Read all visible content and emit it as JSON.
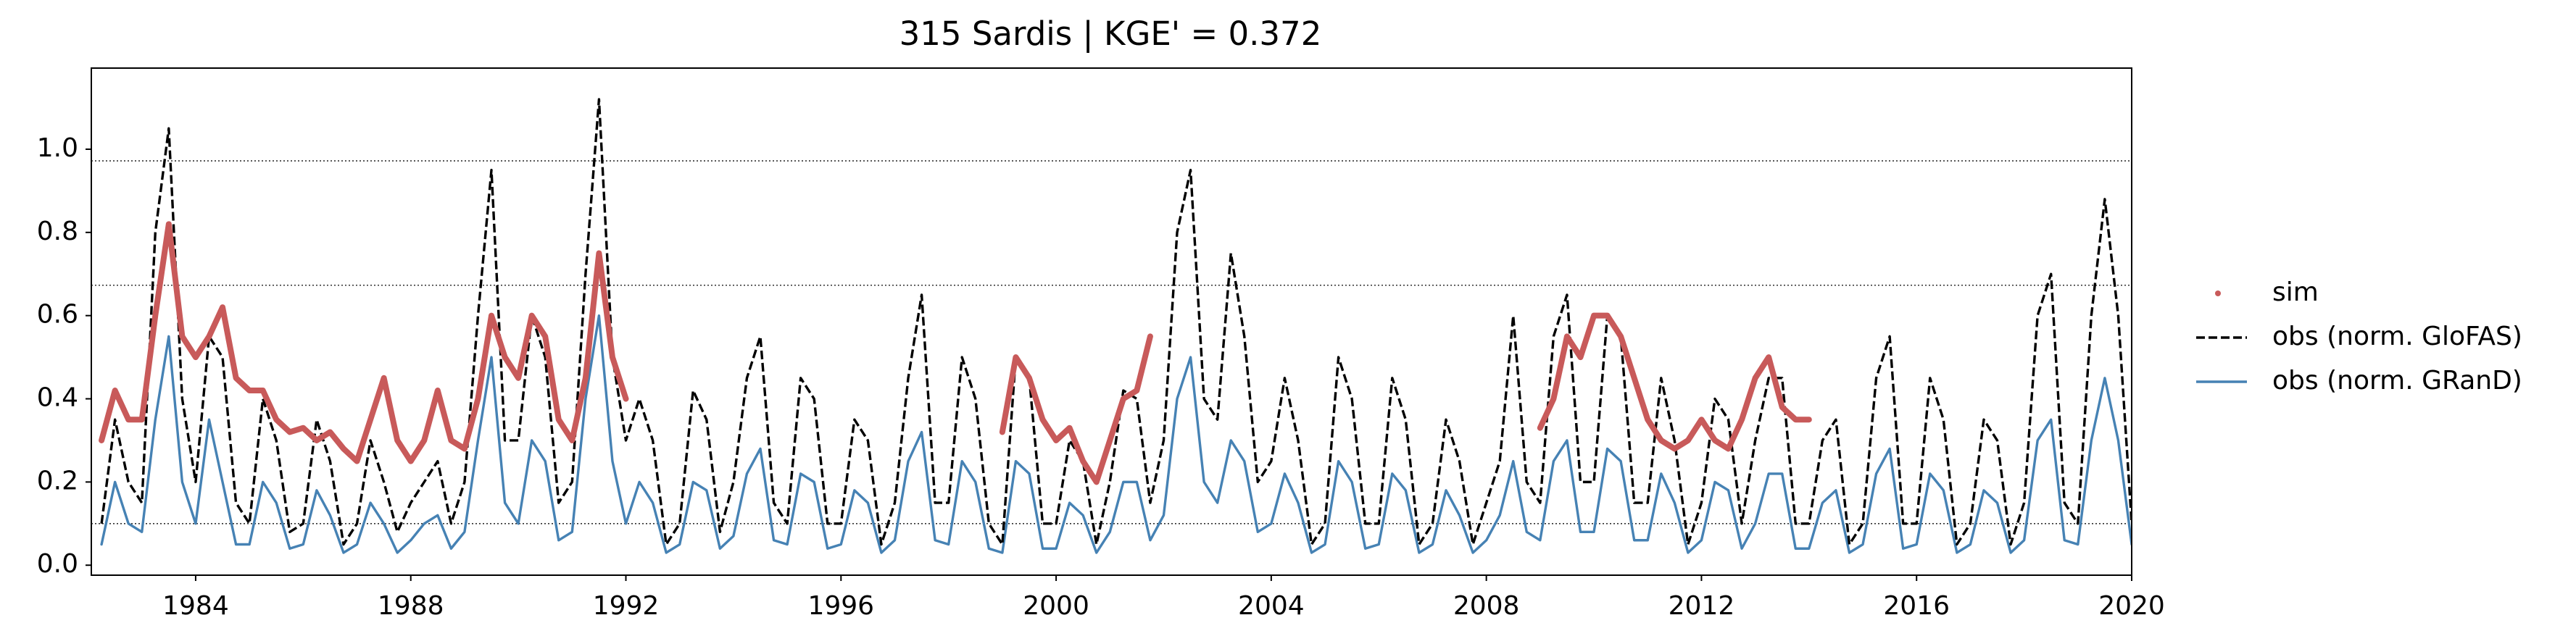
{
  "chart_data": {
    "type": "line",
    "title": "315  Sardis | KGE' = 0.372",
    "x": [
      1982.25,
      1982.5,
      1982.75,
      1983.0,
      1983.25,
      1983.5,
      1983.75,
      1984.0,
      1984.25,
      1984.5,
      1984.75,
      1985.0,
      1985.25,
      1985.5,
      1985.75,
      1986.0,
      1986.25,
      1986.5,
      1986.75,
      1987.0,
      1987.25,
      1987.5,
      1987.75,
      1988.0,
      1988.25,
      1988.5,
      1988.75,
      1989.0,
      1989.25,
      1989.5,
      1989.75,
      1990.0,
      1990.25,
      1990.5,
      1990.75,
      1991.0,
      1991.25,
      1991.5,
      1991.75,
      1992.0,
      1992.25,
      1992.5,
      1992.75,
      1993.0,
      1993.25,
      1993.5,
      1993.75,
      1994.0,
      1994.25,
      1994.5,
      1994.75,
      1995.0,
      1995.25,
      1995.5,
      1995.75,
      1996.0,
      1996.25,
      1996.5,
      1996.75,
      1997.0,
      1997.25,
      1997.5,
      1997.75,
      1998.0,
      1998.25,
      1998.5,
      1998.75,
      1999.0,
      1999.25,
      1999.5,
      1999.75,
      2000.0,
      2000.25,
      2000.5,
      2000.75,
      2001.0,
      2001.25,
      2001.5,
      2001.75,
      2002.0,
      2002.25,
      2002.5,
      2002.75,
      2003.0,
      2003.25,
      2003.5,
      2003.75,
      2004.0,
      2004.25,
      2004.5,
      2004.75,
      2005.0,
      2005.25,
      2005.5,
      2005.75,
      2006.0,
      2006.25,
      2006.5,
      2006.75,
      2007.0,
      2007.25,
      2007.5,
      2007.75,
      2008.0,
      2008.25,
      2008.5,
      2008.75,
      2009.0,
      2009.25,
      2009.5,
      2009.75,
      2010.0,
      2010.25,
      2010.5,
      2010.75,
      2011.0,
      2011.25,
      2011.5,
      2011.75,
      2012.0,
      2012.25,
      2012.5,
      2012.75,
      2013.0,
      2013.25,
      2013.5,
      2013.75,
      2014.0,
      2014.25,
      2014.5,
      2014.75,
      2015.0,
      2015.25,
      2015.5,
      2015.75,
      2016.0,
      2016.25,
      2016.5,
      2016.75,
      2017.0,
      2017.25,
      2017.5,
      2017.75,
      2018.0,
      2018.25,
      2018.5,
      2018.75,
      2019.0,
      2019.25,
      2019.5,
      2019.75,
      2020.0
    ],
    "series": [
      {
        "name": "sim",
        "color": "#c85a5a",
        "marker": "dot",
        "values": [
          0.3,
          0.42,
          0.35,
          0.35,
          0.6,
          0.82,
          0.55,
          0.5,
          0.55,
          0.62,
          0.45,
          0.42,
          0.42,
          0.35,
          0.32,
          0.33,
          0.3,
          0.32,
          0.28,
          0.25,
          0.35,
          0.45,
          0.3,
          0.25,
          0.3,
          0.42,
          0.3,
          0.28,
          0.4,
          0.6,
          0.5,
          0.45,
          0.6,
          0.55,
          0.35,
          0.3,
          0.45,
          0.75,
          0.5,
          0.4,
          null,
          null,
          null,
          null,
          null,
          null,
          null,
          null,
          null,
          null,
          null,
          null,
          null,
          null,
          null,
          null,
          null,
          null,
          null,
          null,
          null,
          null,
          null,
          null,
          null,
          null,
          null,
          0.32,
          0.5,
          0.45,
          0.35,
          0.3,
          0.33,
          0.25,
          0.2,
          0.3,
          0.4,
          0.42,
          0.55,
          null,
          null,
          null,
          null,
          null,
          null,
          null,
          null,
          null,
          null,
          null,
          null,
          null,
          null,
          null,
          null,
          null,
          null,
          null,
          null,
          null,
          null,
          null,
          null,
          null,
          null,
          null,
          null,
          0.33,
          0.4,
          0.55,
          0.5,
          0.6,
          0.6,
          0.55,
          0.45,
          0.35,
          0.3,
          0.28,
          0.3,
          0.35,
          0.3,
          0.28,
          0.35,
          0.45,
          0.5,
          0.38,
          0.35,
          0.35,
          null,
          null,
          null,
          null,
          null,
          null,
          null,
          null,
          null,
          null,
          null,
          null,
          null,
          null,
          null,
          null,
          null,
          null,
          null,
          null,
          null,
          null,
          null,
          null
        ]
      },
      {
        "name": "obs (norm. GloFAS)",
        "color": "#000000",
        "linestyle": "dashed",
        "values": [
          0.1,
          0.35,
          0.2,
          0.15,
          0.8,
          1.05,
          0.4,
          0.2,
          0.55,
          0.5,
          0.15,
          0.1,
          0.4,
          0.3,
          0.08,
          0.1,
          0.35,
          0.25,
          0.05,
          0.1,
          0.3,
          0.2,
          0.08,
          0.15,
          0.2,
          0.25,
          0.1,
          0.2,
          0.6,
          0.95,
          0.3,
          0.3,
          0.6,
          0.5,
          0.15,
          0.2,
          0.7,
          1.12,
          0.5,
          0.3,
          0.4,
          0.3,
          0.05,
          0.1,
          0.42,
          0.35,
          0.08,
          0.2,
          0.45,
          0.55,
          0.15,
          0.1,
          0.45,
          0.4,
          0.1,
          0.1,
          0.35,
          0.3,
          0.05,
          0.15,
          0.45,
          0.65,
          0.15,
          0.15,
          0.5,
          0.4,
          0.1,
          0.05,
          0.5,
          0.45,
          0.1,
          0.1,
          0.3,
          0.25,
          0.05,
          0.2,
          0.42,
          0.4,
          0.15,
          0.3,
          0.8,
          0.95,
          0.4,
          0.35,
          0.75,
          0.55,
          0.2,
          0.25,
          0.45,
          0.3,
          0.05,
          0.1,
          0.5,
          0.4,
          0.1,
          0.1,
          0.45,
          0.35,
          0.05,
          0.1,
          0.35,
          0.25,
          0.05,
          0.15,
          0.25,
          0.6,
          0.2,
          0.15,
          0.55,
          0.65,
          0.2,
          0.2,
          0.6,
          0.55,
          0.15,
          0.15,
          0.45,
          0.3,
          0.05,
          0.15,
          0.4,
          0.35,
          0.1,
          0.3,
          0.45,
          0.45,
          0.1,
          0.1,
          0.3,
          0.35,
          0.05,
          0.1,
          0.45,
          0.55,
          0.1,
          0.1,
          0.45,
          0.35,
          0.05,
          0.1,
          0.35,
          0.3,
          0.05,
          0.15,
          0.6,
          0.7,
          0.15,
          0.1,
          0.6,
          0.88,
          0.6,
          0.1
        ]
      },
      {
        "name": "obs (norm. GRanD)",
        "color": "#4682b4",
        "linestyle": "solid",
        "values": [
          0.05,
          0.2,
          0.1,
          0.08,
          0.35,
          0.55,
          0.2,
          0.1,
          0.35,
          0.2,
          0.05,
          0.05,
          0.2,
          0.15,
          0.04,
          0.05,
          0.18,
          0.12,
          0.03,
          0.05,
          0.15,
          0.1,
          0.03,
          0.06,
          0.1,
          0.12,
          0.04,
          0.08,
          0.3,
          0.5,
          0.15,
          0.1,
          0.3,
          0.25,
          0.06,
          0.08,
          0.4,
          0.6,
          0.25,
          0.1,
          0.2,
          0.15,
          0.03,
          0.05,
          0.2,
          0.18,
          0.04,
          0.07,
          0.22,
          0.28,
          0.06,
          0.05,
          0.22,
          0.2,
          0.04,
          0.05,
          0.18,
          0.15,
          0.03,
          0.06,
          0.25,
          0.32,
          0.06,
          0.05,
          0.25,
          0.2,
          0.04,
          0.03,
          0.25,
          0.22,
          0.04,
          0.04,
          0.15,
          0.12,
          0.03,
          0.08,
          0.2,
          0.2,
          0.06,
          0.12,
          0.4,
          0.5,
          0.2,
          0.15,
          0.3,
          0.25,
          0.08,
          0.1,
          0.22,
          0.15,
          0.03,
          0.05,
          0.25,
          0.2,
          0.04,
          0.05,
          0.22,
          0.18,
          0.03,
          0.05,
          0.18,
          0.12,
          0.03,
          0.06,
          0.12,
          0.25,
          0.08,
          0.06,
          0.25,
          0.3,
          0.08,
          0.08,
          0.28,
          0.25,
          0.06,
          0.06,
          0.22,
          0.15,
          0.03,
          0.06,
          0.2,
          0.18,
          0.04,
          0.1,
          0.22,
          0.22,
          0.04,
          0.04,
          0.15,
          0.18,
          0.03,
          0.05,
          0.22,
          0.28,
          0.04,
          0.05,
          0.22,
          0.18,
          0.03,
          0.05,
          0.18,
          0.15,
          0.03,
          0.06,
          0.3,
          0.35,
          0.06,
          0.05,
          0.3,
          0.45,
          0.3,
          0.05
        ]
      }
    ],
    "hlines": [
      0.972,
      0.673,
      0.1
    ],
    "xlim": [
      1982.06,
      2020
    ],
    "ylim": [
      -0.024,
      1.195
    ],
    "xticks": [
      1984,
      1988,
      1992,
      1996,
      2000,
      2004,
      2008,
      2012,
      2016,
      2020
    ],
    "yticks": [
      {
        "value": 0,
        "label": "0.0"
      },
      0.2,
      0.4,
      0.6,
      0.8,
      {
        "value": 1,
        "label": "1.0"
      }
    ],
    "legend": "outside-right"
  }
}
